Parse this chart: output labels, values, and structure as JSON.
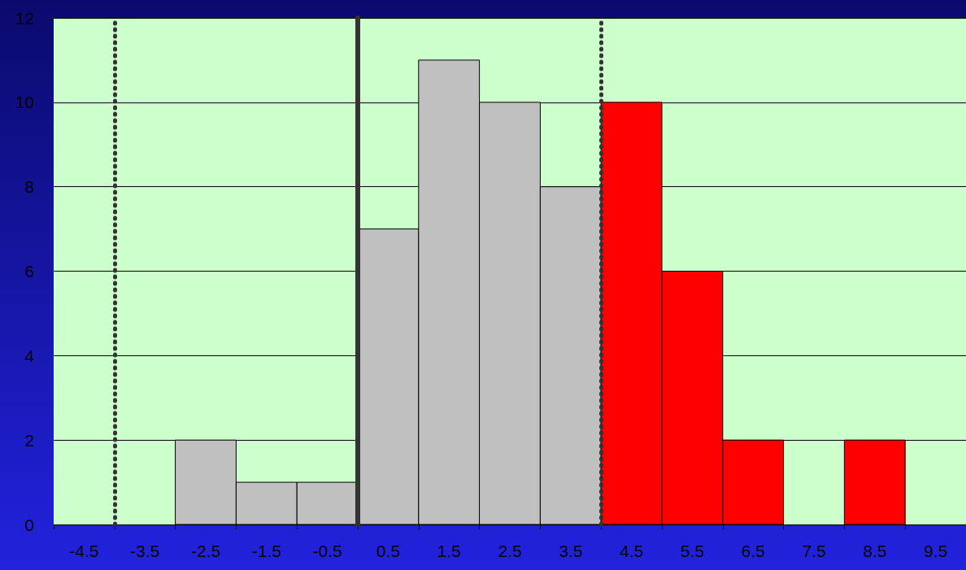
{
  "chart_data": {
    "type": "histogram",
    "bins": [
      -5,
      -4,
      -3,
      -2,
      -1,
      0,
      1,
      2,
      3,
      4,
      5,
      6,
      7,
      8,
      9,
      10
    ],
    "values": [
      0,
      0,
      2,
      1,
      1,
      7,
      11,
      10,
      8,
      10,
      6,
      2,
      0,
      2,
      0
    ],
    "colors": [
      "#c0c0c0",
      "#c0c0c0",
      "#c0c0c0",
      "#c0c0c0",
      "#c0c0c0",
      "#c0c0c0",
      "#c0c0c0",
      "#c0c0c0",
      "#c0c0c0",
      "#ff0000",
      "#ff0000",
      "#ff0000",
      "#ff0000",
      "#ff0000",
      "#ff0000"
    ],
    "xlim": [
      -5,
      10
    ],
    "xticks": [
      -4.5,
      -3.5,
      -2.5,
      -1.5,
      -0.5,
      0.5,
      1.5,
      2.5,
      3.5,
      4.5,
      5.5,
      6.5,
      7.5,
      8.5,
      9.5
    ],
    "ylim": [
      0,
      12
    ],
    "yticks": [
      0,
      2,
      4,
      6,
      8,
      10,
      12
    ],
    "ref_lines": [
      {
        "axis": "x",
        "value": -4,
        "color": "#333333",
        "line_style": "dotted"
      },
      {
        "axis": "x",
        "value": 0,
        "color": "#333333",
        "line_style": "solid"
      },
      {
        "axis": "x",
        "value": 4,
        "color": "#333333",
        "line_style": "dotted"
      }
    ],
    "grid": "y"
  }
}
